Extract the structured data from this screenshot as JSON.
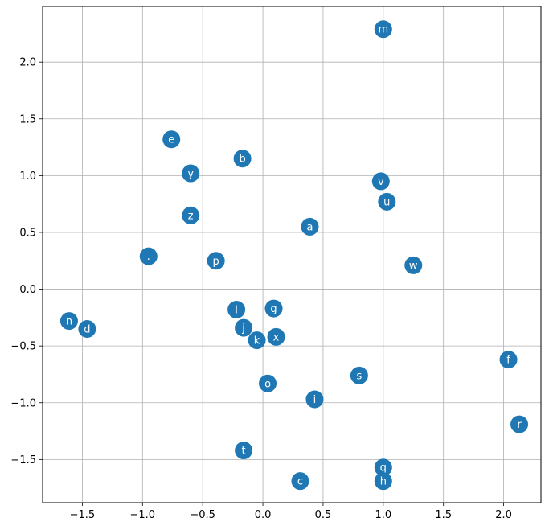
{
  "chart_data": {
    "type": "scatter",
    "title": "",
    "xlabel": "",
    "ylabel": "",
    "xlim": [
      -1.83,
      2.31
    ],
    "ylim": [
      -1.88,
      2.49
    ],
    "grid": true,
    "marker_color": "#1f77b4",
    "label_color": "#ffffff",
    "xticks": [
      -1.5,
      -1.0,
      -0.5,
      0.0,
      0.5,
      1.0,
      1.5,
      2.0
    ],
    "xtick_labels": [
      "−1.5",
      "−1.0",
      "−0.5",
      "0.0",
      "0.5",
      "1.0",
      "1.5",
      "2.0"
    ],
    "yticks": [
      -1.5,
      -1.0,
      -0.5,
      0.0,
      0.5,
      1.0,
      1.5,
      2.0
    ],
    "ytick_labels": [
      "−1.5",
      "−1.0",
      "−0.5",
      "0.0",
      "0.5",
      "1.0",
      "1.5",
      "2.0"
    ],
    "points": [
      {
        "label": "m",
        "x": 1.0,
        "y": 2.29
      },
      {
        "label": "e",
        "x": -0.76,
        "y": 1.32
      },
      {
        "label": "b",
        "x": -0.17,
        "y": 1.15
      },
      {
        "label": "y",
        "x": -0.6,
        "y": 1.02
      },
      {
        "label": "v",
        "x": 0.98,
        "y": 0.95
      },
      {
        "label": "u",
        "x": 1.03,
        "y": 0.77
      },
      {
        "label": "z",
        "x": -0.6,
        "y": 0.65
      },
      {
        "label": "a",
        "x": 0.39,
        "y": 0.55
      },
      {
        "label": ".",
        "x": -0.95,
        "y": 0.29
      },
      {
        "label": "p",
        "x": -0.39,
        "y": 0.25
      },
      {
        "label": "w",
        "x": 1.25,
        "y": 0.21
      },
      {
        "label": "l",
        "x": -0.22,
        "y": -0.18
      },
      {
        "label": "g",
        "x": 0.09,
        "y": -0.17
      },
      {
        "label": "n",
        "x": -1.61,
        "y": -0.28
      },
      {
        "label": "d",
        "x": -1.46,
        "y": -0.35
      },
      {
        "label": "j",
        "x": -0.16,
        "y": -0.34
      },
      {
        "label": "x",
        "x": 0.11,
        "y": -0.42
      },
      {
        "label": "k",
        "x": -0.05,
        "y": -0.45
      },
      {
        "label": "f",
        "x": 2.04,
        "y": -0.62
      },
      {
        "label": "s",
        "x": 0.8,
        "y": -0.76
      },
      {
        "label": "o",
        "x": 0.04,
        "y": -0.83
      },
      {
        "label": "i",
        "x": 0.43,
        "y": -0.97
      },
      {
        "label": "r",
        "x": 2.13,
        "y": -1.19
      },
      {
        "label": "t",
        "x": -0.16,
        "y": -1.42
      },
      {
        "label": "q",
        "x": 1.0,
        "y": -1.57
      },
      {
        "label": "h",
        "x": 1.0,
        "y": -1.69
      },
      {
        "label": "c",
        "x": 0.31,
        "y": -1.69
      }
    ]
  }
}
